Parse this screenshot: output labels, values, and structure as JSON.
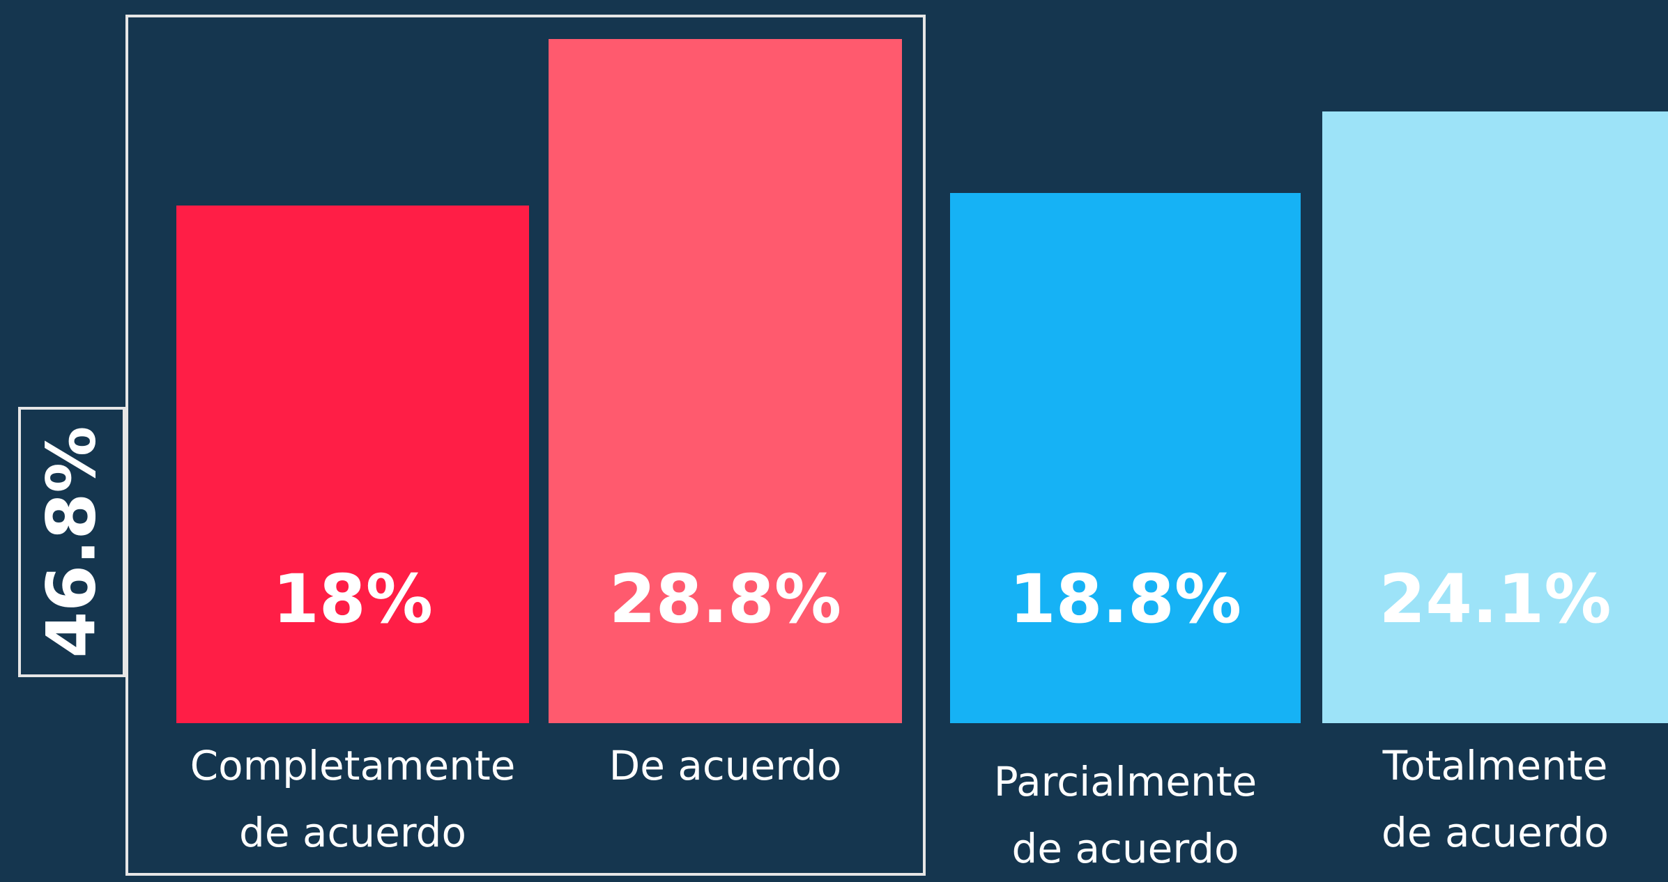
{
  "chart_data": {
    "type": "bar",
    "categories": [
      "Completamente de acuerdo",
      "De acuerdo",
      "Parcialmente de acuerdo",
      "Totalmente de acuerdo"
    ],
    "values": [
      18,
      28.8,
      18.8,
      24.1
    ],
    "value_labels": [
      "18%",
      "28.8%",
      "18.8%",
      "24.1%"
    ],
    "colors": [
      "#ff1e46",
      "#ff5a6e",
      "#16b2f5",
      "#9de3f8"
    ],
    "annotation": "46.8%",
    "ylim": [
      -15.6,
      30
    ]
  }
}
